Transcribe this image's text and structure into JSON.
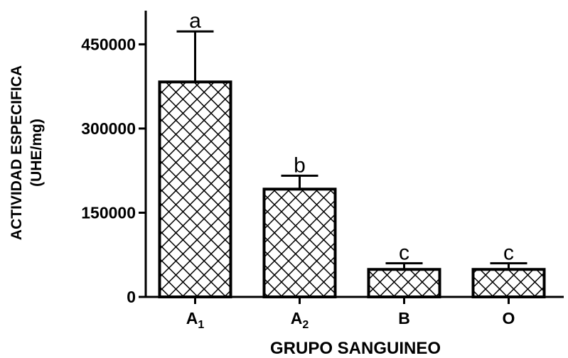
{
  "chart_data": {
    "type": "bar",
    "title": "",
    "xlabel": "GRUPO SANGUINEO",
    "ylabel_line1": "ACTIVIDAD ESPECIFICA",
    "ylabel_line2": "(UHE/mg)",
    "ylim": [
      0,
      510000
    ],
    "yticks": [
      0,
      150000,
      300000,
      450000
    ],
    "ytick_labels": [
      "0",
      "150000",
      "300000",
      "450000"
    ],
    "grid": false,
    "categories": [
      {
        "main": "A",
        "sub": "1"
      },
      {
        "main": "A",
        "sub": "2"
      },
      {
        "main": "B",
        "sub": ""
      },
      {
        "main": "O",
        "sub": ""
      }
    ],
    "values": [
      383000,
      192000,
      49000,
      49000
    ],
    "errors": [
      90000,
      24000,
      11000,
      11000
    ],
    "significance_letters": [
      "a",
      "b",
      "c",
      "c"
    ],
    "bar_pattern": "crosshatch",
    "colors": {
      "stroke": "#000000",
      "fill": "#ffffff"
    }
  }
}
